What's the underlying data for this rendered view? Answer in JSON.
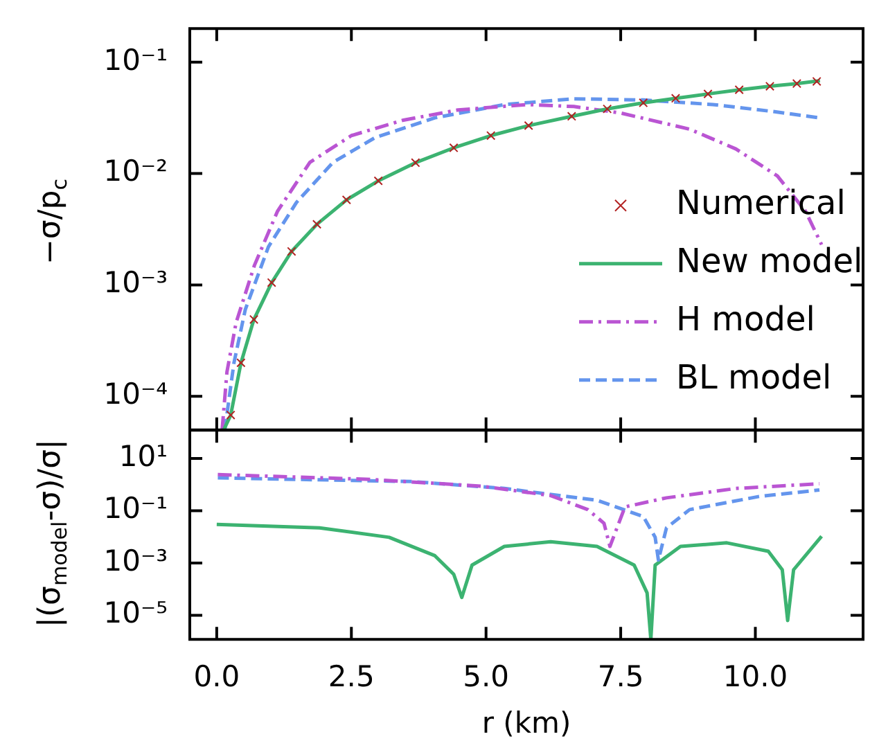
{
  "chart_data": [
    {
      "type": "line",
      "ylabel": "−σ/p$_{c}$",
      "log": "y",
      "xlim": [
        -0.5,
        12.0
      ],
      "xticks": [
        0,
        2.5,
        5,
        7.5,
        10
      ],
      "ylim": [
        5e-05,
        0.2
      ],
      "yticks": [
        {
          "value": 0.1,
          "label": "10⁻¹"
        },
        {
          "value": 0.01,
          "label": "10⁻²"
        },
        {
          "value": 0.001,
          "label": "10⁻³"
        },
        {
          "value": 0.0001,
          "label": "10⁻⁴"
        }
      ],
      "tick_labels": "y",
      "legend": "bottom right",
      "series": [
        {
          "name": "Numerical",
          "type": "scatter",
          "marker": "cross",
          "color": "#b22222",
          "x": [
            0.26,
            0.45,
            0.69,
            1.02,
            1.39,
            1.86,
            2.41,
            3.0,
            3.69,
            4.4,
            5.09,
            5.79,
            6.59,
            7.25,
            7.92,
            8.52,
            9.12,
            9.7,
            10.27,
            10.77,
            11.14
          ],
          "values": [
            6.8e-05,
            0.0002,
            0.00049,
            0.00105,
            0.002,
            0.0035,
            0.0058,
            0.0086,
            0.0125,
            0.017,
            0.0219,
            0.0269,
            0.0326,
            0.038,
            0.0431,
            0.0473,
            0.0518,
            0.0564,
            0.0607,
            0.0641,
            0.0671
          ]
        },
        {
          "name": "New model",
          "type": "line",
          "line_style": "solid",
          "color": "#3cb371",
          "x": [
            0.13,
            0.26,
            0.45,
            0.69,
            1.02,
            1.39,
            1.86,
            2.41,
            3.0,
            3.69,
            4.4,
            5.09,
            5.79,
            6.59,
            7.25,
            7.92,
            8.52,
            9.12,
            9.7,
            10.27,
            10.77,
            11.2
          ],
          "values": [
            5e-05,
            6.8e-05,
            0.0002,
            0.00049,
            0.00105,
            0.002,
            0.0035,
            0.0058,
            0.0086,
            0.0125,
            0.017,
            0.0219,
            0.0269,
            0.0326,
            0.038,
            0.0431,
            0.0473,
            0.0518,
            0.0564,
            0.0607,
            0.0641,
            0.068
          ]
        },
        {
          "name": "H model",
          "type": "line",
          "line_style": "dashdot",
          "color": "#ba55d3",
          "x": [
            0.1,
            0.19,
            0.36,
            0.7,
            1.13,
            1.73,
            2.5,
            3.45,
            4.48,
            5.77,
            6.63,
            7.49,
            8.78,
            9.64,
            10.41,
            10.93,
            11.23
          ],
          "values": [
            5e-05,
            0.000166,
            0.00046,
            0.0015,
            0.0046,
            0.0126,
            0.0219,
            0.03,
            0.0372,
            0.0416,
            0.0399,
            0.035,
            0.025,
            0.0166,
            0.0095,
            0.0046,
            0.0023
          ]
        },
        {
          "name": "BL model",
          "type": "line",
          "line_style": "dashed",
          "color": "#6495ed",
          "x": [
            0.15,
            0.32,
            0.53,
            0.96,
            1.48,
            2.16,
            2.94,
            4.05,
            5.34,
            6.63,
            7.92,
            9.21,
            10.33,
            11.19
          ],
          "values": [
            5e-05,
            0.0002,
            0.0006,
            0.0022,
            0.0055,
            0.0126,
            0.021,
            0.0316,
            0.0416,
            0.0468,
            0.0457,
            0.0416,
            0.036,
            0.0316
          ]
        }
      ]
    },
    {
      "type": "line",
      "xlabel": "r (km)",
      "ylabel": "|(σ$_{model}$-σ)/σ|",
      "log": "y",
      "xlim": [
        -0.5,
        12.0
      ],
      "xticks": [
        {
          "value": 0,
          "label": "0.0"
        },
        {
          "value": 2.5,
          "label": "2.5"
        },
        {
          "value": 5,
          "label": "5.0"
        },
        {
          "value": 7.5,
          "label": "7.5"
        },
        {
          "value": 10,
          "label": "10.0"
        }
      ],
      "ylim": [
        1.2e-06,
        120
      ],
      "yticks": [
        {
          "value": 10,
          "label": "10¹"
        },
        {
          "value": 0.1,
          "label": "10⁻¹"
        },
        {
          "value": 0.001,
          "label": "10⁻³"
        },
        {
          "value": 1e-05,
          "label": "10⁻⁵"
        }
      ],
      "series": [
        {
          "type": "line",
          "line_style": "dashdot",
          "color": "#ba55d3",
          "x": [
            0.02,
            2.77,
            4.91,
            6.2,
            6.89,
            7.19,
            7.3,
            7.58,
            8.35,
            9.64,
            11.19
          ],
          "values": [
            2.4,
            1.6,
            0.87,
            0.38,
            0.11,
            0.033,
            0.0043,
            0.14,
            0.31,
            0.71,
            1.07
          ]
        },
        {
          "type": "line",
          "line_style": "dashed",
          "color": "#6495ed",
          "x": [
            0.02,
            3.63,
            5.34,
            7.06,
            7.92,
            8.14,
            8.2,
            8.35,
            8.78,
            10.07,
            11.19
          ],
          "values": [
            1.8,
            1.3,
            0.71,
            0.25,
            0.06,
            0.0096,
            0.0013,
            0.022,
            0.11,
            0.35,
            0.62
          ]
        },
        {
          "type": "line",
          "line_style": "solid",
          "color": "#3cb371",
          "x": [
            0.0,
            1.91,
            3.2,
            4.05,
            4.4,
            4.55,
            4.74,
            5.34,
            6.2,
            7.06,
            7.75,
            7.99,
            8.06,
            8.14,
            8.61,
            9.47,
            10.24,
            10.5,
            10.6,
            10.71,
            11.23
          ],
          "values": [
            0.03,
            0.022,
            0.0096,
            0.0019,
            0.00037,
            4.8e-05,
            0.00083,
            0.0043,
            0.0065,
            0.0043,
            0.00083,
            7.2e-05,
            1.2e-06,
            0.00083,
            0.0043,
            0.0059,
            0.0028,
            0.00055,
            6.3e-06,
            0.00055,
            0.0105
          ]
        }
      ]
    }
  ]
}
